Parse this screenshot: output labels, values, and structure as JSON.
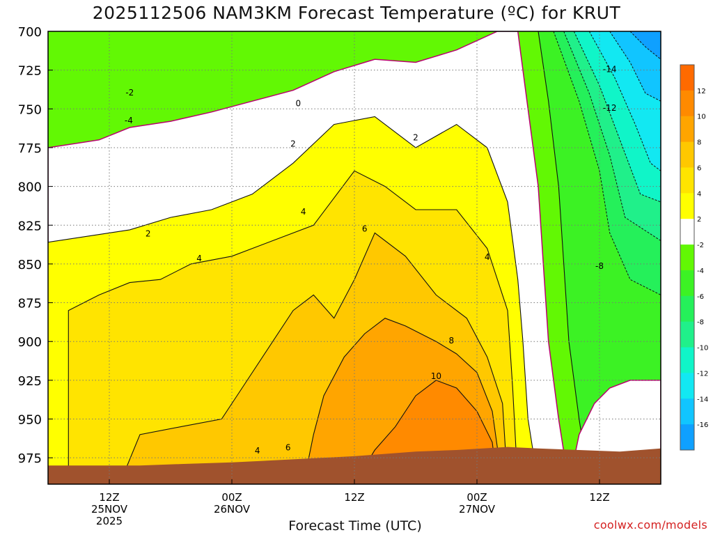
{
  "title": "2025112506 NAM3KM Forecast Temperature (ºC) for KRUT",
  "xlabel": "Forecast Time (UTC)",
  "credit": "coolwx.com/models",
  "colors": {
    "bands": {
      "-16": "#0fa0ff",
      "-14": "#11c5ff",
      "-12": "#12e8f2",
      "-10": "#10f5c8",
      "-8": "#20f08a",
      "-6": "#25f05a",
      "-4": "#3cf224",
      "-2": "#62f804",
      "0": "#ffffff",
      "2": "#ffff00",
      "4": "#ffe400",
      "6": "#ffc800",
      "8": "#ffa500",
      "10": "#ff8a00",
      "12": "#ff6a00"
    },
    "terrain": "#a0522d",
    "freezing_line": "#b8006e",
    "contour": "#111111"
  },
  "chart_data": {
    "type": "heatmap",
    "title": "2025112506 NAM3KM Forecast Temperature (ºC) for KRUT",
    "xlabel": "Forecast Time (UTC)",
    "ylabel": "",
    "x_unit": "forecast hour (from 2025112506)",
    "x_range_hours": [
      0,
      60
    ],
    "y_range_hpa": [
      700,
      992
    ],
    "y_ticks": [
      700,
      725,
      750,
      775,
      800,
      825,
      850,
      875,
      900,
      925,
      950,
      975
    ],
    "x_ticks": [
      {
        "hour": 6,
        "label": "12Z",
        "date": "25NOV",
        "year": "2025"
      },
      {
        "hour": 18,
        "label": "00Z",
        "date": "26NOV",
        "year": ""
      },
      {
        "hour": 30,
        "label": "12Z",
        "date": "",
        "year": ""
      },
      {
        "hour": 42,
        "label": "00Z",
        "date": "27NOV",
        "year": ""
      },
      {
        "hour": 54,
        "label": "12Z",
        "date": "",
        "year": ""
      }
    ],
    "colorbar": {
      "labels": [
        "12",
        "10",
        "8",
        "6",
        "4",
        "2",
        "-2",
        "-4",
        "-6",
        "-8",
        "-10",
        "-12",
        "-14",
        "-16"
      ],
      "band_lows": [
        12,
        10,
        8,
        6,
        4,
        2,
        0,
        -2,
        -4,
        -6,
        -8,
        -10,
        -12,
        -14,
        -16
      ]
    },
    "grid": true,
    "legend": "right",
    "surface_pressure_hpa": [
      [
        0,
        980
      ],
      [
        9,
        980
      ],
      [
        13,
        979
      ],
      [
        18,
        978
      ],
      [
        24,
        976
      ],
      [
        30,
        974
      ],
      [
        36,
        971
      ],
      [
        40,
        970
      ],
      [
        45,
        968
      ],
      [
        48,
        969
      ],
      [
        52,
        970
      ],
      [
        56,
        971
      ],
      [
        60,
        969
      ]
    ],
    "contour_labels": [
      {
        "hour": 8.0,
        "hpa": 739,
        "text": "-2"
      },
      {
        "hour": 7.9,
        "hpa": 757,
        "text": "-4"
      },
      {
        "hour": 24.5,
        "hpa": 746,
        "text": "0"
      },
      {
        "hour": 24.0,
        "hpa": 772,
        "text": "2"
      },
      {
        "hour": 36.0,
        "hpa": 768,
        "text": "2"
      },
      {
        "hour": 9.8,
        "hpa": 830,
        "text": "2"
      },
      {
        "hour": 14.8,
        "hpa": 846,
        "text": "4"
      },
      {
        "hour": 25.0,
        "hpa": 816,
        "text": "4"
      },
      {
        "hour": 43.0,
        "hpa": 845,
        "text": "4"
      },
      {
        "hour": 31.0,
        "hpa": 827,
        "text": "6"
      },
      {
        "hour": 23.5,
        "hpa": 968,
        "text": "6"
      },
      {
        "hour": 20.5,
        "hpa": 970,
        "text": "4"
      },
      {
        "hour": 39.5,
        "hpa": 899,
        "text": "8"
      },
      {
        "hour": 38.0,
        "hpa": 922,
        "text": "10"
      },
      {
        "hour": 55.0,
        "hpa": 724,
        "text": "-14"
      },
      {
        "hour": 55.0,
        "hpa": 749,
        "text": "-12"
      },
      {
        "hour": 54.0,
        "hpa": 851,
        "text": "-8"
      }
    ],
    "isotherm_boundaries": [
      {
        "temp": -6,
        "points": [
          [
            49.5,
            700
          ],
          [
            52,
            745
          ],
          [
            54,
            790
          ],
          [
            55,
            830
          ],
          [
            57,
            860
          ],
          [
            60,
            870
          ]
        ]
      },
      {
        "temp": -8,
        "points": [
          [
            50.5,
            700
          ],
          [
            53,
            740
          ],
          [
            55,
            780
          ],
          [
            56.5,
            820
          ],
          [
            60,
            835
          ]
        ]
      },
      {
        "temp": -10,
        "points": [
          [
            51.5,
            700
          ],
          [
            54,
            735
          ],
          [
            56,
            770
          ],
          [
            58,
            805
          ],
          [
            60,
            810
          ]
        ]
      },
      {
        "temp": -12,
        "points": [
          [
            53,
            700
          ],
          [
            55.5,
            730
          ],
          [
            57.5,
            760
          ],
          [
            59,
            785
          ],
          [
            60,
            790
          ]
        ]
      },
      {
        "temp": -14,
        "points": [
          [
            55,
            700
          ],
          [
            57,
            720
          ],
          [
            58.5,
            740
          ],
          [
            60,
            745
          ]
        ]
      },
      {
        "temp": -16,
        "points": [
          [
            57,
            700
          ],
          [
            58.5,
            710
          ],
          [
            60,
            718
          ]
        ]
      }
    ]
  }
}
